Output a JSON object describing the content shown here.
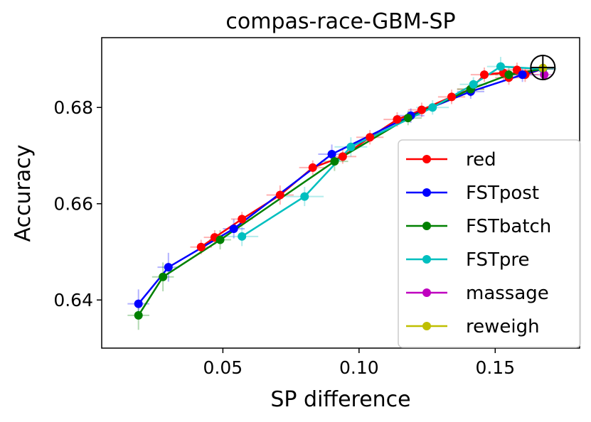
{
  "chart_data": {
    "type": "line",
    "title": "compas-race-GBM-SP",
    "xlabel": "SP difference",
    "ylabel": "Accuracy",
    "xlim": [
      0.0055,
      0.181
    ],
    "ylim": [
      0.63,
      0.6945
    ],
    "xticks": [
      {
        "value": 0.05,
        "label": "0.05"
      },
      {
        "value": 0.1,
        "label": "0.10"
      },
      {
        "value": 0.15,
        "label": "0.15"
      }
    ],
    "yticks": [
      {
        "value": 0.64,
        "label": "0.64"
      },
      {
        "value": 0.66,
        "label": "0.66"
      },
      {
        "value": 0.68,
        "label": "0.68"
      }
    ],
    "grid": false,
    "legend_position": "lower-right",
    "baseline_marker": {
      "x": 0.1675,
      "y": 0.6883,
      "style": "circle-cross"
    },
    "series": [
      {
        "name": "red",
        "color": "#ff0000",
        "points": [
          {
            "x": 0.042,
            "y": 0.651,
            "xerr": 0.004,
            "yerr": 0.0015
          },
          {
            "x": 0.047,
            "y": 0.653,
            "xerr": 0.004,
            "yerr": 0.0015
          },
          {
            "x": 0.057,
            "y": 0.6568,
            "xerr": 0.004,
            "yerr": 0.0015
          },
          {
            "x": 0.071,
            "y": 0.6618,
            "xerr": 0.005,
            "yerr": 0.002
          },
          {
            "x": 0.083,
            "y": 0.6675,
            "xerr": 0.005,
            "yerr": 0.0015
          },
          {
            "x": 0.094,
            "y": 0.6698,
            "xerr": 0.005,
            "yerr": 0.0015
          },
          {
            "x": 0.104,
            "y": 0.6738,
            "xerr": 0.005,
            "yerr": 0.0015
          },
          {
            "x": 0.114,
            "y": 0.6775,
            "xerr": 0.005,
            "yerr": 0.0015
          },
          {
            "x": 0.123,
            "y": 0.6795,
            "xerr": 0.005,
            "yerr": 0.0015
          },
          {
            "x": 0.134,
            "y": 0.6822,
            "xerr": 0.005,
            "yerr": 0.0015
          },
          {
            "x": 0.141,
            "y": 0.6838,
            "xerr": 0.005,
            "yerr": 0.0015
          },
          {
            "x": 0.146,
            "y": 0.6868,
            "xerr": 0.005,
            "yerr": 0.0015
          },
          {
            "x": 0.153,
            "y": 0.6872,
            "xerr": 0.005,
            "yerr": 0.0015
          },
          {
            "x": 0.155,
            "y": 0.6862,
            "xerr": 0.005,
            "yerr": 0.0015
          },
          {
            "x": 0.158,
            "y": 0.6878,
            "xerr": 0.005,
            "yerr": 0.0015
          },
          {
            "x": 0.161,
            "y": 0.6868,
            "xerr": 0.005,
            "yerr": 0.0015
          },
          {
            "x": 0.1675,
            "y": 0.688,
            "xerr": 0.004,
            "yerr": 0.001
          }
        ]
      },
      {
        "name": "FSTpost",
        "color": "#0000ff",
        "points": [
          {
            "x": 0.019,
            "y": 0.6392,
            "xerr": 0.004,
            "yerr": 0.003
          },
          {
            "x": 0.03,
            "y": 0.6468,
            "xerr": 0.004,
            "yerr": 0.003
          },
          {
            "x": 0.054,
            "y": 0.6548,
            "xerr": 0.004,
            "yerr": 0.002
          },
          {
            "x": 0.09,
            "y": 0.6703,
            "xerr": 0.005,
            "yerr": 0.002
          },
          {
            "x": 0.119,
            "y": 0.6783,
            "xerr": 0.005,
            "yerr": 0.0015
          },
          {
            "x": 0.141,
            "y": 0.6833,
            "xerr": 0.005,
            "yerr": 0.0015
          },
          {
            "x": 0.16,
            "y": 0.6868,
            "xerr": 0.005,
            "yerr": 0.0015
          },
          {
            "x": 0.1675,
            "y": 0.688,
            "xerr": 0.004,
            "yerr": 0.001
          }
        ]
      },
      {
        "name": "FSTbatch",
        "color": "#008000",
        "points": [
          {
            "x": 0.019,
            "y": 0.6368,
            "xerr": 0.004,
            "yerr": 0.003
          },
          {
            "x": 0.028,
            "y": 0.6448,
            "xerr": 0.004,
            "yerr": 0.003
          },
          {
            "x": 0.049,
            "y": 0.6525,
            "xerr": 0.004,
            "yerr": 0.002
          },
          {
            "x": 0.091,
            "y": 0.6688,
            "xerr": 0.005,
            "yerr": 0.002
          },
          {
            "x": 0.118,
            "y": 0.6778,
            "xerr": 0.005,
            "yerr": 0.0015
          },
          {
            "x": 0.141,
            "y": 0.6838,
            "xerr": 0.005,
            "yerr": 0.0015
          },
          {
            "x": 0.155,
            "y": 0.6868,
            "xerr": 0.005,
            "yerr": 0.0015
          },
          {
            "x": 0.1675,
            "y": 0.688,
            "xerr": 0.004,
            "yerr": 0.001
          }
        ]
      },
      {
        "name": "FSTpre",
        "color": "#00bfbf",
        "points": [
          {
            "x": 0.057,
            "y": 0.6532,
            "xerr": 0.006,
            "yerr": 0.002
          },
          {
            "x": 0.08,
            "y": 0.6615,
            "xerr": 0.007,
            "yerr": 0.002
          },
          {
            "x": 0.097,
            "y": 0.6718,
            "xerr": 0.006,
            "yerr": 0.002
          },
          {
            "x": 0.127,
            "y": 0.68,
            "xerr": 0.006,
            "yerr": 0.0015
          },
          {
            "x": 0.142,
            "y": 0.6848,
            "xerr": 0.005,
            "yerr": 0.0015
          },
          {
            "x": 0.152,
            "y": 0.6885,
            "xerr": 0.005,
            "yerr": 0.002
          },
          {
            "x": 0.1675,
            "y": 0.688,
            "xerr": 0.005,
            "yerr": 0.0015
          }
        ]
      },
      {
        "name": "massage",
        "color": "#bf00bf",
        "points": [
          {
            "x": 0.168,
            "y": 0.6868,
            "xerr": 0.003,
            "yerr": 0.001
          }
        ]
      },
      {
        "name": "reweigh",
        "color": "#bfbf00",
        "points": [
          {
            "x": 0.1675,
            "y": 0.6882,
            "xerr": 0.003,
            "yerr": 0.001
          }
        ]
      }
    ]
  }
}
